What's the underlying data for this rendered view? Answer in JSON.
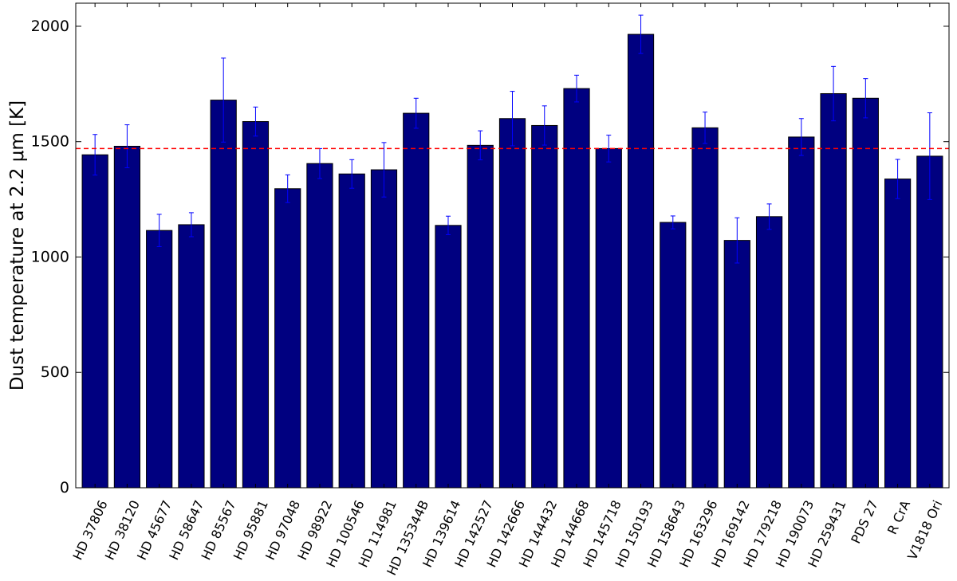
{
  "chart_data": {
    "type": "bar",
    "title": "",
    "xlabel": "",
    "ylabel": "Dust temperature at 2.2 μm [K]",
    "ylim": [
      0,
      2100
    ],
    "yticks": [
      0,
      500,
      1000,
      1500,
      2000
    ],
    "grid": false,
    "categories": [
      "HD 37806",
      "HD 38120",
      "HD 45677",
      "HD 58647",
      "HD 85567",
      "HD 95881",
      "HD 97048",
      "HD 98922",
      "HD 100546",
      "HD 114981",
      "HD 135344B",
      "HD 139614",
      "HD 142527",
      "HD 142666",
      "HD 144432",
      "HD 144668",
      "HD 145718",
      "HD 150193",
      "HD 158643",
      "HD 163296",
      "HD 169142",
      "HD 179218",
      "HD 190073",
      "HD 259431",
      "PDS 27",
      "R CrA",
      "V1818 Ori"
    ],
    "values": [
      1443,
      1480,
      1115,
      1140,
      1680,
      1587,
      1296,
      1405,
      1360,
      1378,
      1623,
      1137,
      1484,
      1600,
      1570,
      1730,
      1470,
      1965,
      1150,
      1560,
      1072,
      1175,
      1520,
      1708,
      1688,
      1338,
      1437
    ],
    "errors": [
      88,
      93,
      70,
      52,
      182,
      63,
      60,
      65,
      62,
      118,
      65,
      40,
      63,
      118,
      85,
      58,
      58,
      83,
      28,
      68,
      98,
      55,
      80,
      118,
      85,
      85,
      188
    ],
    "reference_line": {
      "y": 1470,
      "color": "#ff0000",
      "style": "dashed"
    },
    "colors": {
      "bar": "#000080",
      "bar_edge": "#000000",
      "error_bar": "#0000ff"
    }
  }
}
